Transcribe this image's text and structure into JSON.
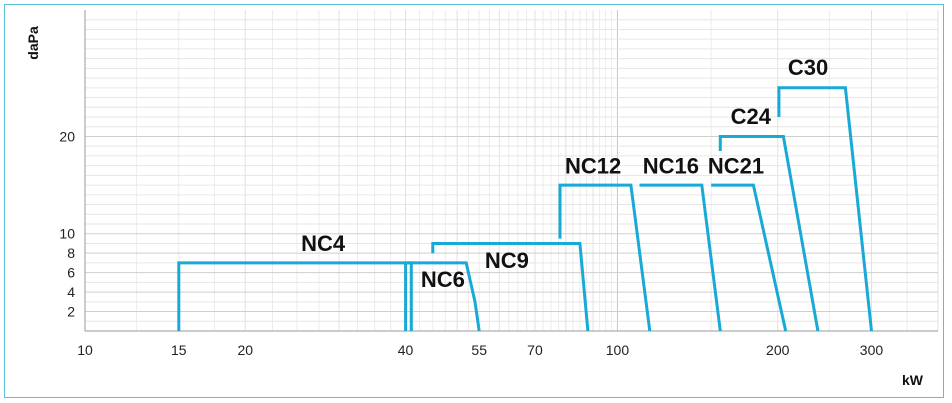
{
  "chart_data": {
    "type": "line",
    "xlabel": "kW",
    "ylabel": "daPa",
    "x_scale": "log",
    "xlim": [
      10,
      400
    ],
    "ylim": [
      0,
      33
    ],
    "x_ticks": [
      10,
      15,
      20,
      40,
      55,
      70,
      100,
      200,
      300
    ],
    "y_ticks": [
      2,
      4,
      6,
      8,
      10,
      20
    ],
    "grid": true,
    "line_color": "#19a9d6",
    "series": [
      {
        "name": "NC4",
        "points": [
          [
            15,
            0
          ],
          [
            15,
            7
          ],
          [
            41,
            7
          ],
          [
            41,
            0
          ]
        ]
      },
      {
        "name": "NC6",
        "points": [
          [
            40,
            0
          ],
          [
            40,
            7
          ],
          [
            52,
            7
          ],
          [
            54,
            3
          ],
          [
            55,
            0
          ]
        ]
      },
      {
        "name": "NC9",
        "points": [
          [
            45,
            8
          ],
          [
            45,
            9
          ],
          [
            85,
            9
          ],
          [
            88,
            0
          ]
        ]
      },
      {
        "name": "NC12",
        "points": [
          [
            78,
            9.5
          ],
          [
            78,
            15
          ],
          [
            106,
            15
          ],
          [
            115,
            0
          ]
        ]
      },
      {
        "name": "NC16",
        "points": [
          [
            110,
            15
          ],
          [
            144,
            15
          ],
          [
            156,
            0
          ]
        ]
      },
      {
        "name": "NC21",
        "points": [
          [
            150,
            15
          ],
          [
            180,
            15
          ],
          [
            207,
            0
          ]
        ]
      },
      {
        "name": "C24",
        "points": [
          [
            156,
            18.5
          ],
          [
            156,
            20
          ],
          [
            205,
            20
          ],
          [
            238,
            0
          ]
        ]
      },
      {
        "name": "C30",
        "points": [
          [
            201,
            22
          ],
          [
            201,
            25
          ],
          [
            268,
            25
          ],
          [
            300,
            0
          ]
        ]
      }
    ]
  }
}
